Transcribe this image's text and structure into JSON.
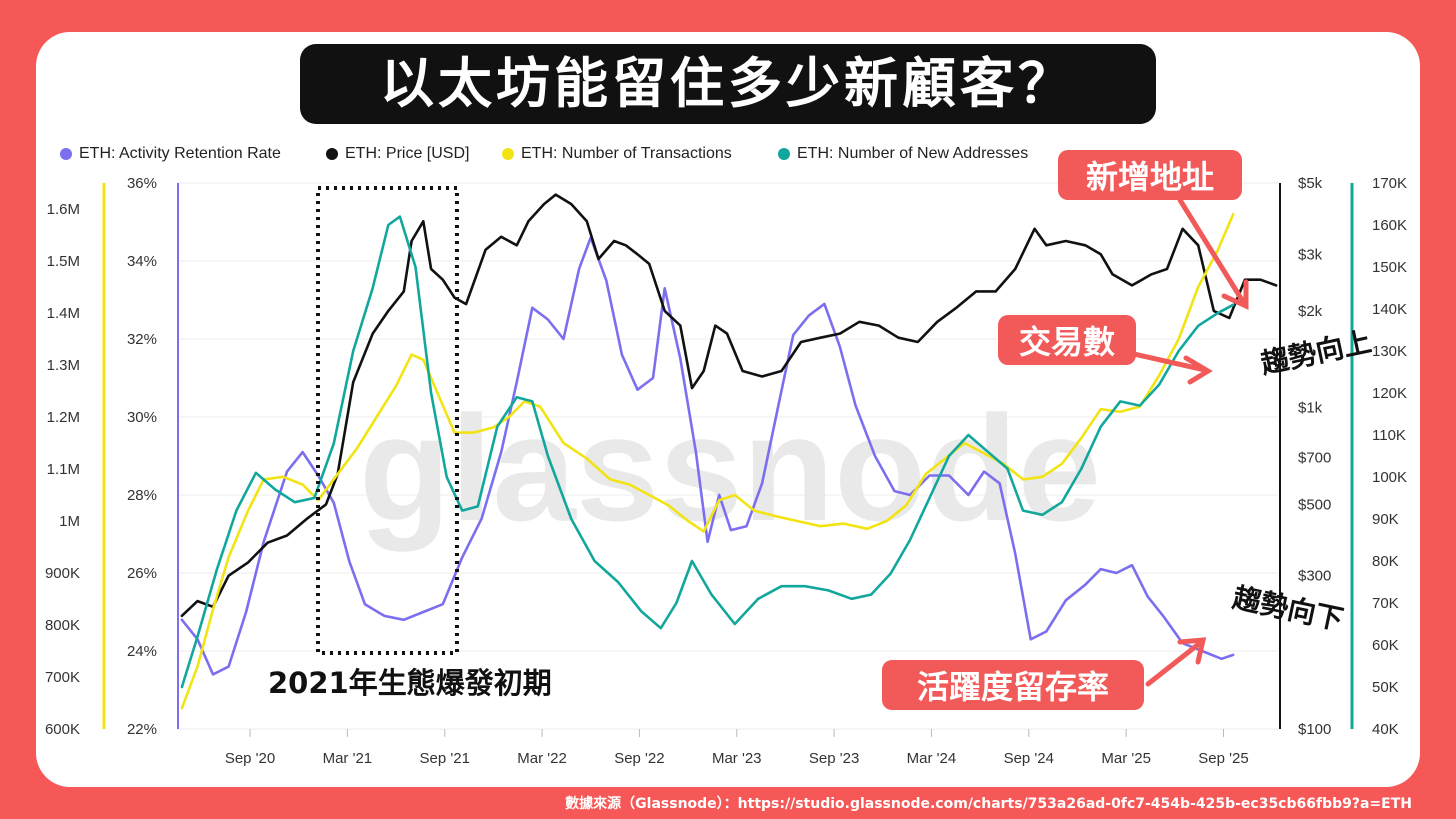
{
  "title": "以太坊能留住多少新顧客？",
  "source": "數據來源（Glassnode）：https://studio.glassnode.com/charts/753a26ad-0fc7-454b-425b-ec35cb66fbb9?a=ETH",
  "watermark": "glassnode",
  "colors": {
    "background": "#f65757",
    "retention": "#7b6ff0",
    "price": "#111111",
    "transactions": "#f2e413",
    "new_addresses": "#12a79d",
    "callout": "#f25a5a"
  },
  "legend": [
    {
      "label": "ETH: Activity Retention Rate",
      "color": "#7b6ff0"
    },
    {
      "label": "ETH: Price [USD]",
      "color": "#111111"
    },
    {
      "label": "ETH: Number of Transactions",
      "color": "#f2e413"
    },
    {
      "label": "ETH: Number of New Addresses",
      "color": "#12a79d"
    }
  ],
  "annotations": {
    "box_label": "2021年生態爆發初期",
    "new_addresses": "新增地址",
    "transactions": "交易數",
    "retention": "活躍度留存率",
    "trend_up": "趨勢向上",
    "trend_down": "趨勢向下"
  },
  "chart_data": {
    "type": "line",
    "x_ticks": [
      "Sep '20",
      "Mar '21",
      "Sep '21",
      "Mar '22",
      "Sep '22",
      "Mar '23",
      "Sep '23",
      "Mar '24",
      "Sep '24",
      "Mar '25",
      "Sep '25"
    ],
    "axes": {
      "transactions": {
        "side": "left-outer",
        "ticks": [
          "600K",
          "700K",
          "800K",
          "900K",
          "1M",
          "1.1M",
          "1.2M",
          "1.3M",
          "1.4M",
          "1.5M",
          "1.6M"
        ],
        "range": [
          600000,
          1650000
        ]
      },
      "retention": {
        "side": "left-inner",
        "ticks": [
          "22%",
          "24%",
          "26%",
          "28%",
          "30%",
          "32%",
          "34%",
          "36%"
        ],
        "range": [
          22,
          36
        ]
      },
      "price": {
        "side": "right-inner",
        "scale": "log",
        "ticks": [
          "$100",
          "$300",
          "$500",
          "$700",
          "$1k",
          "$2k",
          "$3k",
          "$5k"
        ],
        "range": [
          100,
          5000
        ]
      },
      "new_addresses": {
        "side": "right-outer",
        "ticks": [
          "40K",
          "50K",
          "60K",
          "70K",
          "80K",
          "90K",
          "100K",
          "110K",
          "120K",
          "130K",
          "140K",
          "150K",
          "160K",
          "170K"
        ],
        "range": [
          40000,
          170000
        ]
      }
    },
    "x_range": [
      2020.3,
      2025.95
    ],
    "series": [
      {
        "name": "ETH: Activity Retention Rate",
        "axis": "retention",
        "color": "#7b6ff0",
        "points": [
          [
            2020.32,
            24.8
          ],
          [
            2020.4,
            24.3
          ],
          [
            2020.48,
            23.4
          ],
          [
            2020.56,
            23.6
          ],
          [
            2020.65,
            25.0
          ],
          [
            2020.74,
            26.8
          ],
          [
            2020.86,
            28.6
          ],
          [
            2020.94,
            29.1
          ],
          [
            2021.02,
            28.5
          ],
          [
            2021.1,
            27.8
          ],
          [
            2021.18,
            26.3
          ],
          [
            2021.26,
            25.2
          ],
          [
            2021.36,
            24.9
          ],
          [
            2021.46,
            24.8
          ],
          [
            2021.56,
            25.0
          ],
          [
            2021.66,
            25.2
          ],
          [
            2021.76,
            26.4
          ],
          [
            2021.86,
            27.4
          ],
          [
            2021.96,
            29.1
          ],
          [
            2022.04,
            30.9
          ],
          [
            2022.12,
            32.8
          ],
          [
            2022.2,
            32.5
          ],
          [
            2022.28,
            32.0
          ],
          [
            2022.36,
            33.8
          ],
          [
            2022.42,
            34.6
          ],
          [
            2022.5,
            33.5
          ],
          [
            2022.58,
            31.6
          ],
          [
            2022.66,
            30.7
          ],
          [
            2022.74,
            31.0
          ],
          [
            2022.8,
            33.3
          ],
          [
            2022.88,
            31.5
          ],
          [
            2022.96,
            29.1
          ],
          [
            2023.02,
            26.8
          ],
          [
            2023.08,
            28.0
          ],
          [
            2023.14,
            27.1
          ],
          [
            2023.22,
            27.2
          ],
          [
            2023.3,
            28.3
          ],
          [
            2023.38,
            30.2
          ],
          [
            2023.46,
            32.1
          ],
          [
            2023.54,
            32.6
          ],
          [
            2023.62,
            32.9
          ],
          [
            2023.7,
            31.8
          ],
          [
            2023.78,
            30.3
          ],
          [
            2023.88,
            29.0
          ],
          [
            2023.98,
            28.1
          ],
          [
            2024.06,
            28.0
          ],
          [
            2024.16,
            28.5
          ],
          [
            2024.26,
            28.5
          ],
          [
            2024.36,
            28.0
          ],
          [
            2024.44,
            28.6
          ],
          [
            2024.52,
            28.3
          ],
          [
            2024.6,
            26.5
          ],
          [
            2024.68,
            24.3
          ],
          [
            2024.76,
            24.5
          ],
          [
            2024.86,
            25.3
          ],
          [
            2024.96,
            25.7
          ],
          [
            2025.04,
            26.1
          ],
          [
            2025.12,
            26.0
          ],
          [
            2025.2,
            26.2
          ],
          [
            2025.28,
            25.4
          ],
          [
            2025.36,
            24.9
          ],
          [
            2025.46,
            24.2
          ],
          [
            2025.56,
            24.0
          ],
          [
            2025.66,
            23.8
          ],
          [
            2025.72,
            23.9
          ]
        ]
      },
      {
        "name": "ETH: Price [USD]",
        "axis": "price",
        "color": "#111111",
        "points": [
          [
            2020.32,
            225
          ],
          [
            2020.4,
            250
          ],
          [
            2020.48,
            240
          ],
          [
            2020.56,
            300
          ],
          [
            2020.66,
            330
          ],
          [
            2020.76,
            380
          ],
          [
            2020.86,
            400
          ],
          [
            2020.96,
            450
          ],
          [
            2021.06,
            500
          ],
          [
            2021.12,
            620
          ],
          [
            2021.2,
            1200
          ],
          [
            2021.3,
            1700
          ],
          [
            2021.38,
            2000
          ],
          [
            2021.46,
            2300
          ],
          [
            2021.5,
            3300
          ],
          [
            2021.56,
            3800
          ],
          [
            2021.6,
            2700
          ],
          [
            2021.66,
            2500
          ],
          [
            2021.72,
            2200
          ],
          [
            2021.78,
            2100
          ],
          [
            2021.88,
            3100
          ],
          [
            2021.96,
            3400
          ],
          [
            2022.04,
            3200
          ],
          [
            2022.1,
            3800
          ],
          [
            2022.18,
            4300
          ],
          [
            2022.24,
            4600
          ],
          [
            2022.32,
            4300
          ],
          [
            2022.4,
            3800
          ],
          [
            2022.46,
            2900
          ],
          [
            2022.54,
            3300
          ],
          [
            2022.6,
            3200
          ],
          [
            2022.66,
            3000
          ],
          [
            2022.72,
            2800
          ],
          [
            2022.8,
            2000
          ],
          [
            2022.88,
            1800
          ],
          [
            2022.94,
            1150
          ],
          [
            2023.0,
            1300
          ],
          [
            2023.06,
            1800
          ],
          [
            2023.12,
            1700
          ],
          [
            2023.2,
            1300
          ],
          [
            2023.3,
            1250
          ],
          [
            2023.4,
            1300
          ],
          [
            2023.5,
            1600
          ],
          [
            2023.6,
            1650
          ],
          [
            2023.7,
            1700
          ],
          [
            2023.8,
            1850
          ],
          [
            2023.9,
            1800
          ],
          [
            2024.0,
            1650
          ],
          [
            2024.1,
            1600
          ],
          [
            2024.2,
            1850
          ],
          [
            2024.3,
            2050
          ],
          [
            2024.4,
            2300
          ],
          [
            2024.5,
            2300
          ],
          [
            2024.6,
            2700
          ],
          [
            2024.7,
            3600
          ],
          [
            2024.76,
            3200
          ],
          [
            2024.86,
            3300
          ],
          [
            2024.96,
            3200
          ],
          [
            2025.04,
            3000
          ],
          [
            2025.1,
            2600
          ],
          [
            2025.2,
            2400
          ],
          [
            2025.3,
            2600
          ],
          [
            2025.38,
            2700
          ],
          [
            2025.46,
            3600
          ],
          [
            2025.54,
            3200
          ],
          [
            2025.62,
            2000
          ],
          [
            2025.7,
            1900
          ],
          [
            2025.78,
            2500
          ],
          [
            2025.86,
            2500
          ],
          [
            2025.94,
            2400
          ]
        ]
      },
      {
        "name": "ETH: Number of Transactions",
        "axis": "transactions",
        "color": "#f2e413",
        "points": [
          [
            2020.32,
            640000
          ],
          [
            2020.4,
            720000
          ],
          [
            2020.48,
            830000
          ],
          [
            2020.56,
            930000
          ],
          [
            2020.66,
            1020000
          ],
          [
            2020.74,
            1080000
          ],
          [
            2020.84,
            1085000
          ],
          [
            2020.94,
            1070000
          ],
          [
            2021.02,
            1040000
          ],
          [
            2021.12,
            1090000
          ],
          [
            2021.22,
            1140000
          ],
          [
            2021.32,
            1200000
          ],
          [
            2021.42,
            1260000
          ],
          [
            2021.5,
            1320000
          ],
          [
            2021.56,
            1310000
          ],
          [
            2021.64,
            1240000
          ],
          [
            2021.72,
            1170000
          ],
          [
            2021.82,
            1170000
          ],
          [
            2021.92,
            1180000
          ],
          [
            2022.0,
            1200000
          ],
          [
            2022.08,
            1230000
          ],
          [
            2022.16,
            1220000
          ],
          [
            2022.28,
            1150000
          ],
          [
            2022.4,
            1120000
          ],
          [
            2022.52,
            1080000
          ],
          [
            2022.62,
            1070000
          ],
          [
            2022.72,
            1050000
          ],
          [
            2022.82,
            1030000
          ],
          [
            2022.92,
            1000000
          ],
          [
            2023.0,
            980000
          ],
          [
            2023.08,
            1040000
          ],
          [
            2023.16,
            1050000
          ],
          [
            2023.26,
            1020000
          ],
          [
            2023.36,
            1010000
          ],
          [
            2023.48,
            1000000
          ],
          [
            2023.6,
            990000
          ],
          [
            2023.72,
            995000
          ],
          [
            2023.84,
            985000
          ],
          [
            2023.94,
            1000000
          ],
          [
            2024.04,
            1030000
          ],
          [
            2024.14,
            1090000
          ],
          [
            2024.24,
            1120000
          ],
          [
            2024.34,
            1150000
          ],
          [
            2024.44,
            1130000
          ],
          [
            2024.54,
            1110000
          ],
          [
            2024.64,
            1080000
          ],
          [
            2024.74,
            1085000
          ],
          [
            2024.84,
            1110000
          ],
          [
            2024.94,
            1160000
          ],
          [
            2025.04,
            1215000
          ],
          [
            2025.14,
            1210000
          ],
          [
            2025.24,
            1220000
          ],
          [
            2025.34,
            1280000
          ],
          [
            2025.44,
            1350000
          ],
          [
            2025.54,
            1450000
          ],
          [
            2025.64,
            1520000
          ],
          [
            2025.72,
            1590000
          ]
        ]
      },
      {
        "name": "ETH: Number of New Addresses",
        "axis": "new_addresses",
        "color": "#12a79d",
        "points": [
          [
            2020.32,
            50000
          ],
          [
            2020.4,
            62000
          ],
          [
            2020.5,
            78000
          ],
          [
            2020.6,
            92000
          ],
          [
            2020.7,
            101000
          ],
          [
            2020.8,
            97000
          ],
          [
            2020.9,
            94000
          ],
          [
            2021.0,
            95000
          ],
          [
            2021.1,
            108000
          ],
          [
            2021.2,
            130000
          ],
          [
            2021.3,
            145000
          ],
          [
            2021.38,
            160000
          ],
          [
            2021.44,
            162000
          ],
          [
            2021.52,
            150000
          ],
          [
            2021.6,
            120000
          ],
          [
            2021.68,
            100000
          ],
          [
            2021.76,
            92000
          ],
          [
            2021.84,
            93000
          ],
          [
            2021.94,
            112000
          ],
          [
            2022.04,
            119000
          ],
          [
            2022.12,
            118000
          ],
          [
            2022.2,
            105000
          ],
          [
            2022.32,
            90000
          ],
          [
            2022.44,
            80000
          ],
          [
            2022.56,
            75000
          ],
          [
            2022.68,
            68000
          ],
          [
            2022.78,
            64000
          ],
          [
            2022.86,
            70000
          ],
          [
            2022.94,
            80000
          ],
          [
            2023.04,
            72000
          ],
          [
            2023.16,
            65000
          ],
          [
            2023.28,
            71000
          ],
          [
            2023.4,
            74000
          ],
          [
            2023.52,
            74000
          ],
          [
            2023.64,
            73000
          ],
          [
            2023.76,
            71000
          ],
          [
            2023.86,
            72000
          ],
          [
            2023.96,
            77000
          ],
          [
            2024.06,
            85000
          ],
          [
            2024.16,
            95000
          ],
          [
            2024.26,
            105000
          ],
          [
            2024.36,
            110000
          ],
          [
            2024.46,
            106000
          ],
          [
            2024.56,
            102000
          ],
          [
            2024.64,
            92000
          ],
          [
            2024.74,
            91000
          ],
          [
            2024.84,
            94000
          ],
          [
            2024.94,
            102000
          ],
          [
            2025.04,
            112000
          ],
          [
            2025.14,
            118000
          ],
          [
            2025.24,
            117000
          ],
          [
            2025.34,
            122000
          ],
          [
            2025.44,
            130000
          ],
          [
            2025.54,
            136000
          ],
          [
            2025.64,
            139000
          ],
          [
            2025.72,
            141000
          ]
        ]
      }
    ]
  }
}
